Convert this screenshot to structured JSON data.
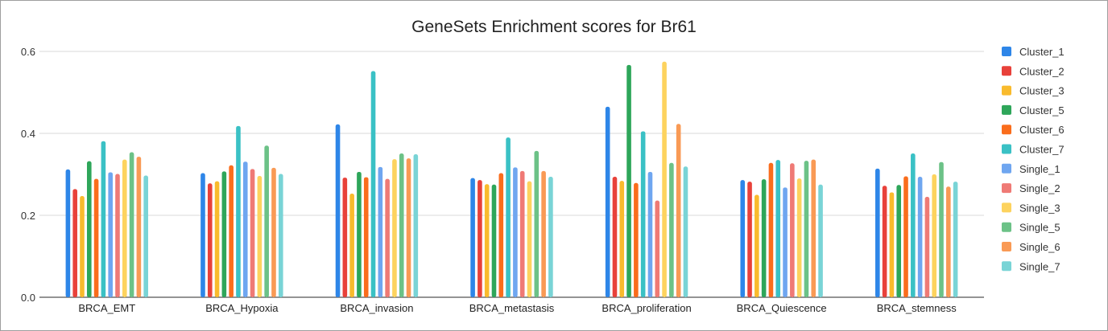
{
  "chart_data": {
    "type": "bar",
    "title": "GeneSets Enrichment scores for Br61",
    "xlabel": "",
    "ylabel": "",
    "ylim": [
      0,
      0.6
    ],
    "yticks": [
      "0.0",
      "0.2",
      "0.4",
      "0.6"
    ],
    "grid": true,
    "legend_position": "right",
    "categories": [
      "BRCA_EMT",
      "BRCA_Hypoxia",
      "BRCA_invasion",
      "BRCA_metastasis",
      "BRCA_proliferation",
      "BRCA_Quiescence",
      "BRCA_stemness"
    ],
    "series": [
      {
        "name": "Cluster_1",
        "color": "#2e86e8",
        "values": [
          0.312,
          0.303,
          0.422,
          0.291,
          0.465,
          0.286,
          0.314
        ]
      },
      {
        "name": "Cluster_2",
        "color": "#e8413a",
        "values": [
          0.264,
          0.278,
          0.292,
          0.286,
          0.294,
          0.282,
          0.272
        ]
      },
      {
        "name": "Cluster_3",
        "color": "#f9bb2d",
        "values": [
          0.247,
          0.283,
          0.253,
          0.276,
          0.284,
          0.25,
          0.256
        ]
      },
      {
        "name": "Cluster_5",
        "color": "#2ea65a",
        "values": [
          0.332,
          0.307,
          0.306,
          0.275,
          0.567,
          0.288,
          0.274
        ]
      },
      {
        "name": "Cluster_6",
        "color": "#fa6d1c",
        "values": [
          0.289,
          0.322,
          0.293,
          0.303,
          0.279,
          0.328,
          0.295
        ]
      },
      {
        "name": "Cluster_7",
        "color": "#3ac1c5",
        "values": [
          0.381,
          0.418,
          0.552,
          0.39,
          0.405,
          0.335,
          0.351
        ]
      },
      {
        "name": "Single_1",
        "color": "#6fa6f0",
        "values": [
          0.305,
          0.331,
          0.318,
          0.317,
          0.306,
          0.268,
          0.294
        ]
      },
      {
        "name": "Single_2",
        "color": "#ef7a75",
        "values": [
          0.301,
          0.313,
          0.289,
          0.308,
          0.236,
          0.327,
          0.245
        ]
      },
      {
        "name": "Single_3",
        "color": "#fdd35e",
        "values": [
          0.336,
          0.296,
          0.337,
          0.283,
          0.575,
          0.29,
          0.3
        ]
      },
      {
        "name": "Single_5",
        "color": "#6cc287",
        "values": [
          0.354,
          0.37,
          0.351,
          0.357,
          0.328,
          0.333,
          0.33
        ]
      },
      {
        "name": "Single_6",
        "color": "#f99a55",
        "values": [
          0.343,
          0.316,
          0.339,
          0.308,
          0.423,
          0.336,
          0.27
        ]
      },
      {
        "name": "Single_7",
        "color": "#79d4d6",
        "values": [
          0.297,
          0.301,
          0.349,
          0.294,
          0.319,
          0.275,
          0.282
        ]
      }
    ]
  }
}
